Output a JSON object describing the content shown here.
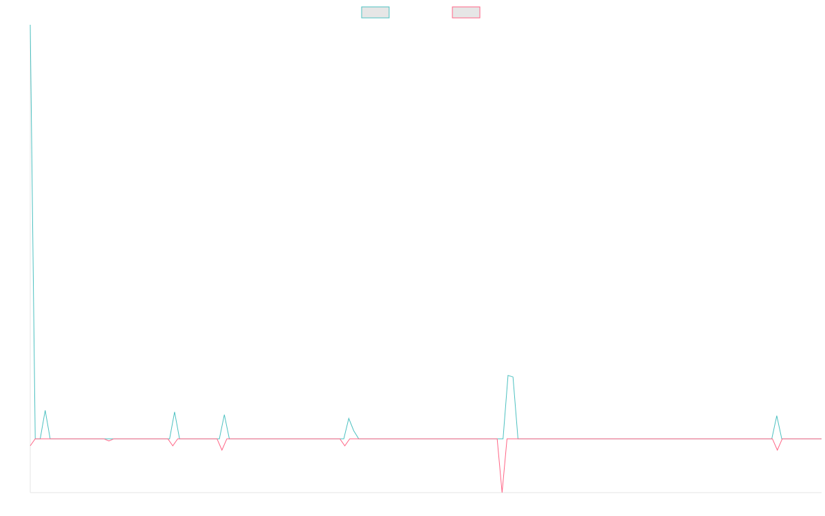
{
  "chart_data": {
    "type": "line",
    "title": "",
    "xlabel": "",
    "ylabel": "",
    "legend": {
      "placement": "top-center",
      "entries": [
        {
          "label": "",
          "stroke": "#4bc0c0",
          "fill": "#e6e6e6"
        },
        {
          "label": "",
          "stroke": "#ff6384",
          "fill": "#e6e6e6"
        }
      ]
    },
    "axes": {
      "x_visible_line": true,
      "y_visible_line": true,
      "grid": false,
      "ticks_shown": false
    },
    "ylim": [
      -10,
      77
    ],
    "series": [
      {
        "color": "#4bc0c0",
        "values": [
          77,
          0,
          0,
          5.3,
          0,
          0,
          0,
          0,
          0,
          0,
          0,
          0,
          0,
          0,
          0,
          0,
          0,
          0,
          0,
          0,
          0,
          0,
          0,
          0,
          0,
          0,
          0,
          0,
          0,
          5.0,
          0,
          0,
          0,
          0,
          0,
          0,
          0,
          0,
          0,
          4.5,
          0,
          0,
          0,
          0,
          0,
          0,
          0,
          0,
          0,
          0,
          0,
          0,
          0,
          0,
          0,
          0,
          0,
          0,
          0,
          0,
          0,
          0,
          0,
          0,
          3.8,
          1.5,
          0,
          0,
          0,
          0,
          0,
          0,
          0,
          0,
          0,
          0,
          0,
          0,
          0,
          0,
          0,
          0,
          0,
          0,
          0,
          0,
          0,
          0,
          0,
          0,
          0,
          0,
          0,
          0,
          0,
          0,
          11.8,
          11.5,
          0,
          0,
          0,
          0,
          0,
          0,
          0,
          0,
          0,
          0,
          0,
          0,
          0,
          0,
          0,
          0,
          0,
          0,
          0,
          0,
          0,
          0,
          0,
          0,
          0,
          0,
          0,
          0,
          0,
          0,
          0,
          0,
          0,
          0,
          0,
          0,
          0,
          0,
          0,
          0,
          0,
          0,
          0,
          0,
          0,
          0,
          0,
          0,
          0,
          0,
          0,
          0,
          4.3,
          0,
          0,
          0,
          0,
          0,
          0,
          0,
          0,
          0
        ]
      },
      {
        "color": "#ff6384",
        "values": [
          -1.3,
          0,
          0,
          0,
          0,
          0,
          0,
          0,
          0,
          0,
          0,
          0,
          0,
          0,
          0,
          0,
          -0.4,
          0,
          0,
          0,
          0,
          0,
          0,
          0,
          0,
          0,
          0,
          0,
          0,
          -1.3,
          0,
          0,
          0,
          0,
          0,
          0,
          0,
          0,
          0,
          -2.1,
          0,
          0,
          0,
          0,
          0,
          0,
          0,
          0,
          0,
          0,
          0,
          0,
          0,
          0,
          0,
          0,
          0,
          0,
          0,
          0,
          0,
          0,
          0,
          0,
          -1.3,
          0,
          0,
          0,
          0,
          0,
          0,
          0,
          0,
          0,
          0,
          0,
          0,
          0,
          0,
          0,
          0,
          0,
          0,
          0,
          0,
          0,
          0,
          0,
          0,
          0,
          0,
          0,
          0,
          0,
          0,
          0,
          -10,
          0,
          0,
          0,
          0,
          0,
          0,
          0,
          0,
          0,
          0,
          0,
          0,
          0,
          0,
          0,
          0,
          0,
          0,
          0,
          0,
          0,
          0,
          0,
          0,
          0,
          0,
          0,
          0,
          0,
          0,
          0,
          0,
          0,
          0,
          0,
          0,
          0,
          0,
          0,
          0,
          0,
          0,
          0,
          0,
          0,
          0,
          0,
          0,
          0,
          0,
          0,
          0,
          0,
          0,
          0,
          -2.1,
          0,
          0,
          0,
          0,
          0,
          0,
          0,
          0,
          0
        ]
      }
    ]
  }
}
